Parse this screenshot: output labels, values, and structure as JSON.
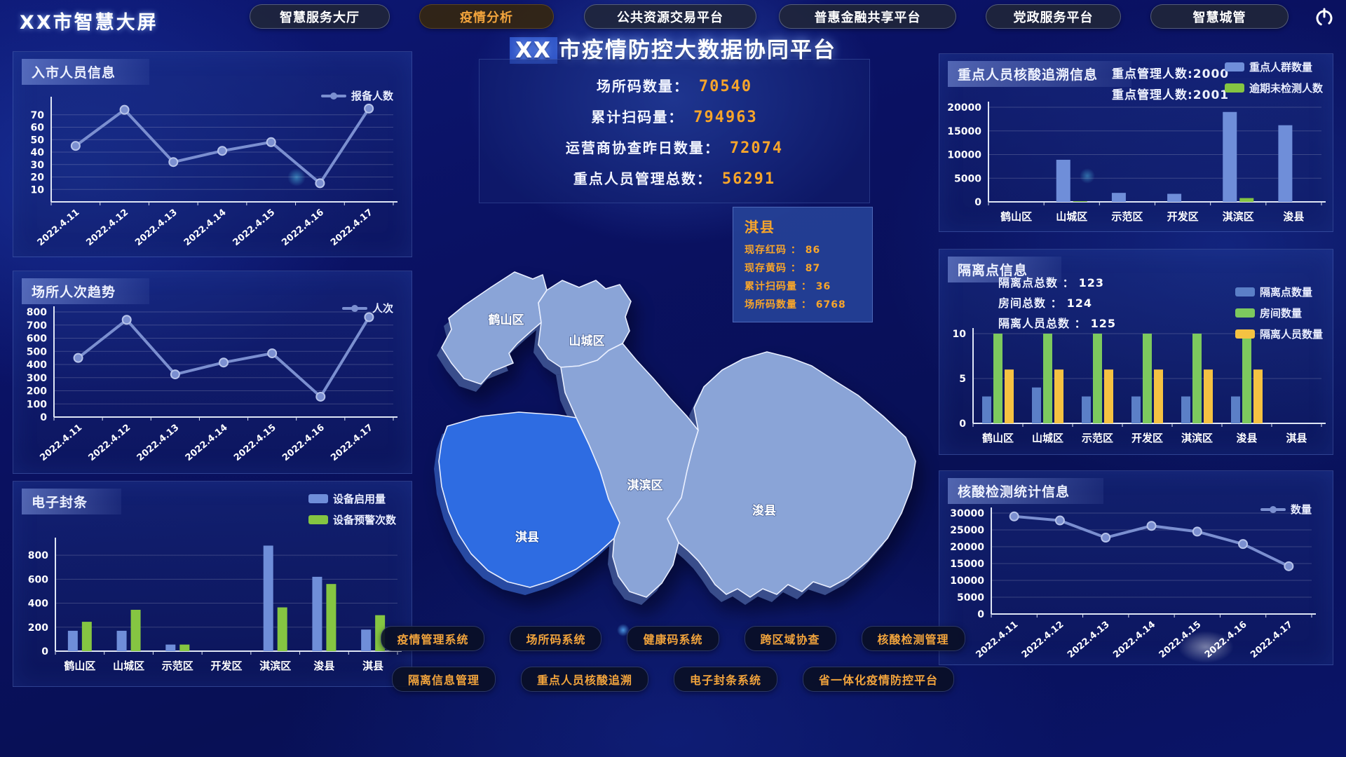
{
  "app": {
    "brand": "XX市智慧大屏",
    "nav": [
      {
        "label": "智慧服务大厅",
        "active": false
      },
      {
        "label": "疫情分析",
        "active": true
      },
      {
        "label": "公共资源交易平台",
        "active": false
      },
      {
        "label": "普惠金融共享平台",
        "active": false
      },
      {
        "label": "党政服务平台",
        "active": false
      },
      {
        "label": "智慧城管",
        "active": false
      }
    ]
  },
  "main_title": {
    "prefix": "XX",
    "text": "市疫情防控大数据协同平台"
  },
  "stats": [
    {
      "label": "场所码数量：",
      "value": "70540"
    },
    {
      "label": "累计扫码量：",
      "value": "794963"
    },
    {
      "label": "运营商协查昨日数量：",
      "value": "72074"
    },
    {
      "label": "重点人员管理总数：",
      "value": "56291"
    }
  ],
  "map": {
    "region_color": "#8aa4d7",
    "highlight_color": "#2e6ce2",
    "regions": [
      {
        "name": "鹤山区",
        "highlighted": false
      },
      {
        "name": "山城区",
        "highlighted": false
      },
      {
        "name": "淇滨区",
        "highlighted": false
      },
      {
        "name": "浚县",
        "highlighted": false
      },
      {
        "name": "淇县",
        "highlighted": true
      }
    ],
    "tooltip": {
      "title": "淇县",
      "rows": [
        {
          "label": "现存红码 ：",
          "value": "86"
        },
        {
          "label": "现存黄码 ：",
          "value": "87"
        },
        {
          "label": "累计扫码量 ：",
          "value": "36"
        },
        {
          "label": "场所码数量 ：",
          "value": "6768"
        }
      ]
    }
  },
  "system_buttons": {
    "row1": [
      "疫情管理系统",
      "场所码系统",
      "健康码系统",
      "跨区域协查",
      "核酸检测管理"
    ],
    "row2": [
      "隔离信息管理",
      "重点人员核酸追溯",
      "电子封条系统",
      "省一体化疫情防控平台"
    ]
  },
  "chart_data": [
    {
      "type": "line",
      "title": "入市人员信息",
      "legend": "报备人数",
      "color": "#7b8fd0",
      "x": [
        "2022.4.11",
        "2022.4.12",
        "2022.4.13",
        "2022.4.14",
        "2022.4.15",
        "2022.4.16",
        "2022.4.17"
      ],
      "values": [
        45,
        74,
        32,
        41,
        48,
        15,
        75
      ],
      "yticks": [
        10,
        20,
        30,
        40,
        50,
        60,
        70
      ],
      "ymax": 80,
      "grid": true,
      "legend_position": "top-right"
    },
    {
      "type": "line",
      "title": "场所人次趋势",
      "legend": "人次",
      "color": "#7b8fd0",
      "x": [
        "2022.4.11",
        "2022.4.12",
        "2022.4.13",
        "2022.4.14",
        "2022.4.15",
        "2022.4.16",
        "2022.4.17"
      ],
      "values": [
        450,
        740,
        325,
        415,
        485,
        155,
        760
      ],
      "yticks": [
        0,
        100,
        200,
        300,
        400,
        500,
        600,
        700,
        800
      ],
      "ymax": 800,
      "grid": true,
      "legend_position": "top-right"
    },
    {
      "type": "bar",
      "title": "电子封条",
      "categories": [
        "鹤山区",
        "山城区",
        "示范区",
        "开发区",
        "淇滨区",
        "浚县",
        "淇县"
      ],
      "series": [
        {
          "name": "设备启用量",
          "color": "#6f8ed9",
          "values": [
            170,
            170,
            55,
            0,
            880,
            620,
            180
          ]
        },
        {
          "name": "设备预警次数",
          "color": "#85c542",
          "values": [
            245,
            345,
            55,
            0,
            365,
            560,
            300
          ]
        }
      ],
      "yticks": [
        0,
        200,
        400,
        600,
        800
      ],
      "ymax": 900,
      "grid": true,
      "legend_position": "top-right"
    },
    {
      "type": "bar",
      "title": "重点人员核酸追溯信息",
      "subtitles": [
        "重点管理人数:2000",
        "重点管理人数:2001"
      ],
      "categories": [
        "鹤山区",
        "山城区",
        "示范区",
        "开发区",
        "淇滨区",
        "浚县"
      ],
      "series": [
        {
          "name": "重点人群数量",
          "color": "#6f8ed9",
          "values": [
            0,
            8900,
            1900,
            1700,
            19000,
            16200
          ]
        },
        {
          "name": "逾期未检测人数",
          "color": "#85c542",
          "values": [
            0,
            150,
            0,
            0,
            800,
            0
          ]
        }
      ],
      "yticks": [
        0,
        5000,
        10000,
        15000,
        20000
      ],
      "ymax": 20000,
      "grid": true,
      "legend_position": "top-right"
    },
    {
      "type": "bar",
      "title": "隔离点信息",
      "stats": [
        {
          "label": "隔离点总数 ：",
          "value": "123"
        },
        {
          "label": "房间总数 ：",
          "value": "124"
        },
        {
          "label": "隔离人员总数 ：",
          "value": "125"
        }
      ],
      "categories": [
        "鹤山区",
        "山城区",
        "示范区",
        "开发区",
        "淇滨区",
        "浚县",
        "淇县"
      ],
      "series": [
        {
          "name": "隔离点数量",
          "color": "#5b7fc7",
          "values": [
            3,
            4,
            3,
            3,
            3,
            3,
            0
          ]
        },
        {
          "name": "房间数量",
          "color": "#7dc95e",
          "values": [
            10,
            10,
            10,
            10,
            10,
            10,
            0
          ]
        },
        {
          "name": "隔离人员数量",
          "color": "#f5c242",
          "values": [
            6,
            6,
            6,
            6,
            6,
            6,
            0
          ]
        }
      ],
      "yticks": [
        0,
        5,
        10
      ],
      "ymax": 10,
      "grid": true,
      "legend_position": "right"
    },
    {
      "type": "line",
      "title": "核酸检测统计信息",
      "legend": "数量",
      "color": "#7b8fd0",
      "x": [
        "2022.4.11",
        "2022.4.12",
        "2022.4.13",
        "2022.4.14",
        "2022.4.15",
        "2022.4.16",
        "2022.4.17"
      ],
      "values": [
        29000,
        27800,
        22700,
        26200,
        24500,
        20800,
        14200
      ],
      "yticks": [
        0,
        5000,
        10000,
        15000,
        20000,
        25000,
        30000
      ],
      "ymax": 30000,
      "grid": true,
      "legend_position": "top-right"
    }
  ]
}
